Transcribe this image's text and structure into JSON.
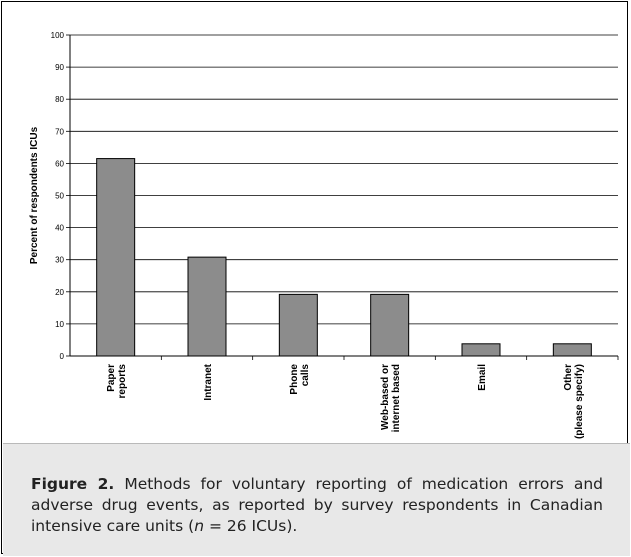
{
  "chart_data": {
    "type": "bar",
    "title": "",
    "xlabel": "",
    "ylabel": "Percent of respondents ICUs",
    "ylim": [
      0,
      100
    ],
    "yticks": [
      0,
      10,
      20,
      30,
      40,
      50,
      60,
      70,
      80,
      90,
      100
    ],
    "grid": true,
    "legend": "none",
    "categories": [
      [
        "Paper",
        "reports"
      ],
      [
        "Intranet"
      ],
      [
        "Phone",
        "calls"
      ],
      [
        "Web-based or",
        "internet based"
      ],
      [
        "Email"
      ],
      [
        "Other",
        "(please specify)"
      ]
    ],
    "values": [
      61.5,
      30.8,
      19.2,
      19.2,
      3.8,
      3.8
    ],
    "bar_color": "#8c8c8c"
  },
  "caption": {
    "label": "Figure 2.",
    "text_before_n": " Methods for voluntary reporting of medication errors and adverse drug events, as reported by survey respondents in Canadian intensive care units (",
    "n_symbol": "n",
    "text_after_n": " = 26 ICUs)."
  }
}
